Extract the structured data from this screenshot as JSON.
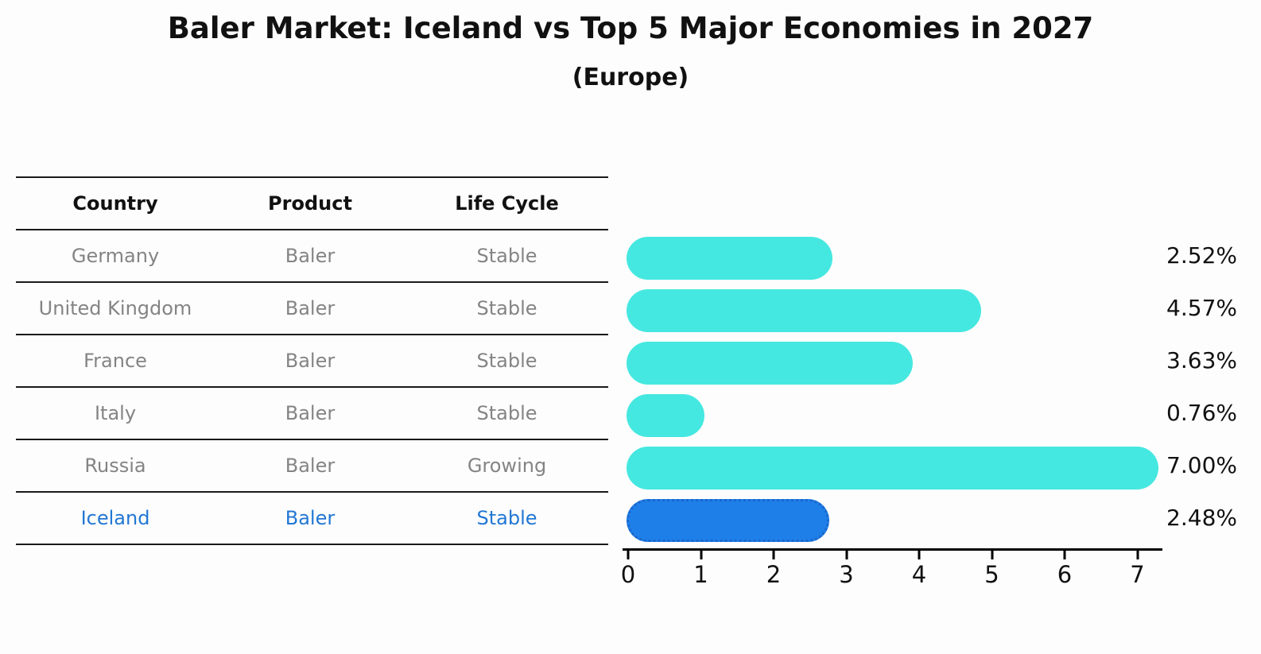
{
  "header": {
    "title": "Baler Market: Iceland vs Top 5 Major Economies in 2027",
    "subtitle": "(Europe)"
  },
  "table": {
    "columns": [
      "Country",
      "Product",
      "Life Cycle"
    ],
    "rows": [
      {
        "country": "Germany",
        "product": "Baler",
        "life_cycle": "Stable",
        "highlight": false
      },
      {
        "country": "United Kingdom",
        "product": "Baler",
        "life_cycle": "Stable",
        "highlight": false
      },
      {
        "country": "France",
        "product": "Baler",
        "life_cycle": "Stable",
        "highlight": false
      },
      {
        "country": "Italy",
        "product": "Baler",
        "life_cycle": "Stable",
        "highlight": false
      },
      {
        "country": "Russia",
        "product": "Baler",
        "life_cycle": "Growing",
        "highlight": false
      },
      {
        "country": "Iceland",
        "product": "Baler",
        "life_cycle": "Stable",
        "highlight": true
      }
    ]
  },
  "chart_data": {
    "type": "bar",
    "orientation": "horizontal",
    "title": "Baler Market: Iceland vs Top 5 Major Economies in 2027",
    "subtitle": "(Europe)",
    "categories": [
      "Germany",
      "United Kingdom",
      "France",
      "Italy",
      "Russia",
      "Iceland"
    ],
    "values": [
      2.52,
      4.57,
      3.63,
      0.76,
      7.0,
      2.48
    ],
    "value_labels": [
      "2.52%",
      "4.57%",
      "3.63%",
      "0.76%",
      "7.00%",
      "2.48%"
    ],
    "x_ticks": [
      "0",
      "1",
      "2",
      "3",
      "4",
      "5",
      "6",
      "7"
    ],
    "xlim": [
      0,
      7.3
    ],
    "grid": false,
    "legend": "none",
    "bar_color": "#45e8e0",
    "highlight_index": 5,
    "highlight_color": "#1e7fe8",
    "highlight_border_color": "#1a66cc",
    "muted_text_color": "#848484",
    "highlight_text_color": "#2277d4",
    "axis_color": "#000000"
  }
}
